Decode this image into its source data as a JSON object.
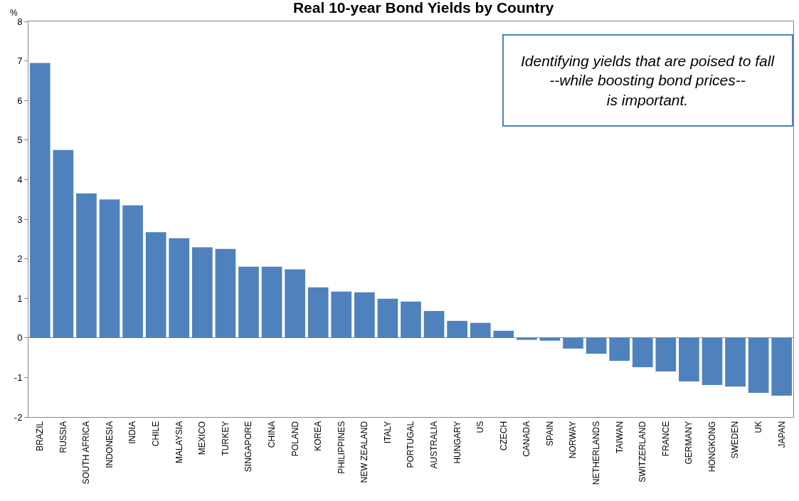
{
  "chart_data": {
    "type": "bar",
    "title": "Real 10-year Bond Yields by Country",
    "ylabel": "%",
    "categories": [
      "BRAZIL",
      "RUSSIA",
      "SOUTH AFRICA",
      "INDONESIA",
      "INDIA",
      "CHILE",
      "MALAYSIA",
      "MEXICO",
      "TURKEY",
      "SINGAPORE",
      "CHINA",
      "POLAND",
      "KOREA",
      "PHILIPPINES",
      "NEW ZEALAND",
      "ITALY",
      "PORTUGAL",
      "AUSTRALIA",
      "HUNGARY",
      "US",
      "CZECH",
      "CANADA",
      "SPAIN",
      "NORWAY",
      "NETHERLANDS",
      "TAIWAN",
      "SWITZERLAND",
      "FRANCE",
      "GERMANY",
      "HONGKONG",
      "SWEDEN",
      "UK",
      "JAPAN"
    ],
    "values": [
      6.95,
      4.75,
      3.65,
      3.5,
      3.35,
      2.67,
      2.52,
      2.29,
      2.25,
      1.8,
      1.8,
      1.73,
      1.28,
      1.17,
      1.15,
      0.99,
      0.92,
      0.68,
      0.43,
      0.38,
      0.18,
      -0.05,
      -0.07,
      -0.27,
      -0.4,
      -0.58,
      -0.74,
      -0.85,
      -1.1,
      -1.19,
      -1.23,
      -1.39,
      -1.46
    ],
    "color": "#4f81bd",
    "ylim": [
      -2,
      8
    ],
    "yticks": [
      -2,
      -1,
      0,
      1,
      2,
      3,
      4,
      5,
      6,
      7,
      8
    ],
    "annotations": [
      "Identifying yields that are poised to fall\n--while boosting bond prices--\nis important."
    ]
  }
}
